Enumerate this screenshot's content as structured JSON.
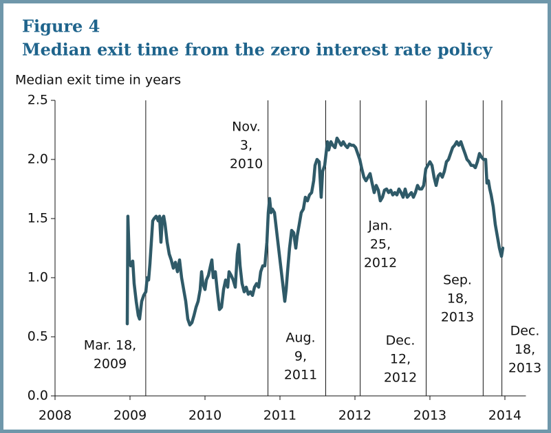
{
  "chart_data": {
    "type": "line",
    "title": "Figure 4",
    "subtitle": "Median exit time from the zero interest rate policy",
    "y_label": "Median exit time in years",
    "xlim": [
      2008,
      2014.28
    ],
    "xticks": [
      2008,
      2009,
      2010,
      2011,
      2012,
      2013,
      2014
    ],
    "ylim": [
      0,
      2.5
    ],
    "yticks": [
      {
        "value": 0,
        "label": "0.0"
      },
      0.5,
      {
        "value": 1,
        "label": "1.0"
      },
      1.5,
      {
        "value": 2,
        "label": "2.0"
      },
      2.5
    ],
    "grid": false,
    "x": [
      2008.963,
      2008.972,
      2008.991,
      2009.009,
      2009.037,
      2009.055,
      2009.083,
      2009.11,
      2009.128,
      2009.156,
      2009.183,
      2009.211,
      2009.229,
      2009.248,
      2009.266,
      2009.284,
      2009.303,
      2009.321,
      2009.349,
      2009.376,
      2009.394,
      2009.413,
      2009.431,
      2009.45,
      2009.468,
      2009.495,
      2009.523,
      2009.55,
      2009.578,
      2009.606,
      2009.633,
      2009.661,
      2009.688,
      2009.716,
      2009.743,
      2009.771,
      2009.798,
      2009.826,
      2009.853,
      2009.881,
      2009.908,
      2009.936,
      2009.954,
      2009.972,
      2010.0,
      2010.018,
      2010.046,
      2010.073,
      2010.092,
      2010.11,
      2010.138,
      2010.165,
      2010.193,
      2010.22,
      2010.248,
      2010.275,
      2010.303,
      2010.321,
      2010.349,
      2010.376,
      2010.404,
      2010.431,
      2010.45,
      2010.468,
      2010.495,
      2010.523,
      2010.55,
      2010.578,
      2010.606,
      2010.633,
      2010.661,
      2010.688,
      2010.716,
      2010.743,
      2010.771,
      2010.798,
      2010.826,
      2010.844,
      2010.862,
      2010.881,
      2010.899,
      2010.927,
      2010.954,
      2010.982,
      2011.009,
      2011.037,
      2011.064,
      2011.083,
      2011.101,
      2011.128,
      2011.156,
      2011.183,
      2011.211,
      2011.229,
      2011.257,
      2011.284,
      2011.312,
      2011.339,
      2011.367,
      2011.394,
      2011.422,
      2011.45,
      2011.468,
      2011.495,
      2011.523,
      2011.55,
      2011.569,
      2011.596,
      2011.615,
      2011.633,
      2011.651,
      2011.679,
      2011.706,
      2011.734,
      2011.761,
      2011.789,
      2011.817,
      2011.844,
      2011.872,
      2011.899,
      2011.927,
      2011.954,
      2011.982,
      2012.009,
      2012.037,
      2012.064,
      2012.092,
      2012.119,
      2012.147,
      2012.174,
      2012.202,
      2012.229,
      2012.257,
      2012.284,
      2012.312,
      2012.339,
      2012.367,
      2012.394,
      2012.422,
      2012.45,
      2012.477,
      2012.505,
      2012.532,
      2012.56,
      2012.587,
      2012.615,
      2012.642,
      2012.67,
      2012.697,
      2012.725,
      2012.752,
      2012.78,
      2012.807,
      2012.835,
      2012.862,
      2012.89,
      2012.917,
      2012.945,
      2012.972,
      2013.0,
      2013.028,
      2013.055,
      2013.083,
      2013.11,
      2013.138,
      2013.165,
      2013.193,
      2013.22,
      2013.248,
      2013.275,
      2013.303,
      2013.33,
      2013.358,
      2013.385,
      2013.413,
      2013.44,
      2013.468,
      2013.495,
      2013.523,
      2013.55,
      2013.578,
      2013.606,
      2013.633,
      2013.661,
      2013.688,
      2013.716,
      2013.743,
      2013.761,
      2013.78,
      2013.798,
      2013.817,
      2013.844,
      2013.872,
      2013.899,
      2013.927,
      2013.954,
      2013.972
    ],
    "series": [
      {
        "color": "#2f5a68",
        "values": [
          0.61,
          1.52,
          1.15,
          1.1,
          1.14,
          0.95,
          0.8,
          0.68,
          0.65,
          0.8,
          0.85,
          0.88,
          1.0,
          0.98,
          1.12,
          1.3,
          1.48,
          1.5,
          1.52,
          1.48,
          1.52,
          1.3,
          1.5,
          1.52,
          1.45,
          1.3,
          1.2,
          1.15,
          1.08,
          1.13,
          1.05,
          1.15,
          1.0,
          0.9,
          0.8,
          0.65,
          0.6,
          0.62,
          0.68,
          0.75,
          0.8,
          0.9,
          1.05,
          0.95,
          0.9,
          0.98,
          1.02,
          1.1,
          1.15,
          1.0,
          1.05,
          0.88,
          0.73,
          0.75,
          0.9,
          0.98,
          0.92,
          1.05,
          1.02,
          0.98,
          0.92,
          1.2,
          1.28,
          1.1,
          0.95,
          0.88,
          0.92,
          0.86,
          0.88,
          0.85,
          0.92,
          0.95,
          0.92,
          1.05,
          1.1,
          1.1,
          1.3,
          1.55,
          1.67,
          1.55,
          1.58,
          1.55,
          1.4,
          1.25,
          1.1,
          0.95,
          0.8,
          0.9,
          1.05,
          1.25,
          1.4,
          1.38,
          1.25,
          1.35,
          1.45,
          1.55,
          1.58,
          1.68,
          1.65,
          1.7,
          1.72,
          1.82,
          1.95,
          2.0,
          1.98,
          1.68,
          1.9,
          1.95,
          2.05,
          2.15,
          2.08,
          2.15,
          2.12,
          2.1,
          2.18,
          2.15,
          2.12,
          2.15,
          2.12,
          2.1,
          2.13,
          2.12,
          2.12,
          2.1,
          2.05,
          2.0,
          1.92,
          1.85,
          1.82,
          1.85,
          1.88,
          1.8,
          1.72,
          1.78,
          1.74,
          1.65,
          1.68,
          1.74,
          1.75,
          1.72,
          1.74,
          1.7,
          1.72,
          1.7,
          1.75,
          1.72,
          1.68,
          1.75,
          1.68,
          1.7,
          1.72,
          1.68,
          1.72,
          1.78,
          1.75,
          1.75,
          1.78,
          1.92,
          1.95,
          1.98,
          1.95,
          1.85,
          1.78,
          1.86,
          1.88,
          1.85,
          1.9,
          1.98,
          2.0,
          2.05,
          2.1,
          2.12,
          2.15,
          2.12,
          2.15,
          2.1,
          2.05,
          2.0,
          1.98,
          1.95,
          1.95,
          1.93,
          1.98,
          2.05,
          2.02,
          2.0,
          2.0,
          1.8,
          1.82,
          1.75,
          1.7,
          1.6,
          1.45,
          1.35,
          1.25,
          1.18,
          1.25
        ]
      }
    ],
    "events": [
      {
        "x": 2009.21,
        "label": [
          "Mar. 18,",
          "2009"
        ]
      },
      {
        "x": 2010.84,
        "label": [
          "Nov.",
          "3,",
          "2010"
        ]
      },
      {
        "x": 2011.61,
        "label": [
          "Aug.",
          "9,",
          "2011"
        ]
      },
      {
        "x": 2012.07,
        "label": [
          "Jan.",
          "25,",
          "2012"
        ]
      },
      {
        "x": 2012.95,
        "label": [
          "Dec.",
          "12,",
          "2012"
        ]
      },
      {
        "x": 2013.71,
        "label": [
          "Sep.",
          "18,",
          "2013"
        ]
      },
      {
        "x": 2013.96,
        "label": [
          "Dec.",
          "18,",
          "2013"
        ]
      }
    ]
  }
}
